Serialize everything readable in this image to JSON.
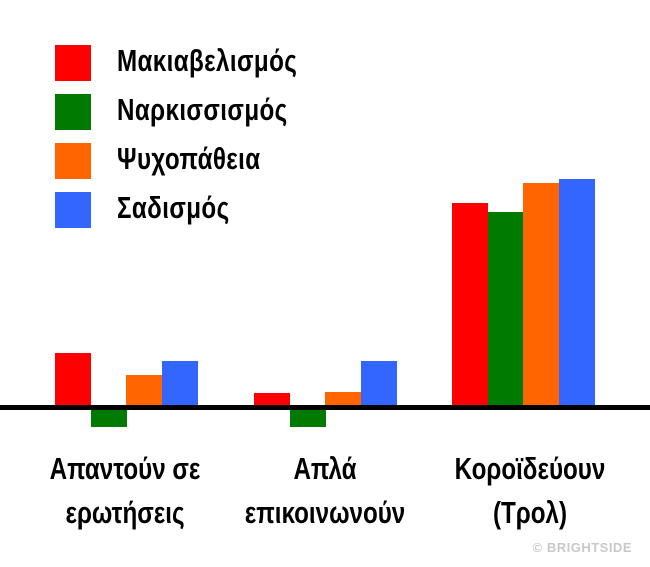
{
  "chart_data": {
    "type": "bar",
    "title": "",
    "xlabel": "",
    "ylabel": "",
    "grid": false,
    "legend_position": "top-left",
    "categories": [
      "Απαντούν σε ερωτήσεις",
      "Απλά επικοινωνούν",
      "Κοροϊδεύουν (Τρολ)"
    ],
    "category_lines": [
      [
        "Απαντούν σε",
        "ερωτήσεις"
      ],
      [
        "Απλά",
        "επικοινωνούν"
      ],
      [
        "Κοροϊδεύουν",
        "(Τρολ)"
      ]
    ],
    "units": "relative (no axis scale shown)",
    "series": [
      {
        "name": "Μακιαβελισμός",
        "color": "#ff0000",
        "values": [
          53,
          13,
          203
        ]
      },
      {
        "name": "Ναρκισσισμός",
        "color": "#017a01",
        "values": [
          -19,
          -19,
          194
        ]
      },
      {
        "name": "Ψυχοπάθεια",
        "color": "#ff6600",
        "values": [
          31,
          14,
          223
        ]
      },
      {
        "name": "Σαδισμός",
        "color": "#3366ff",
        "values": [
          45,
          45,
          227
        ]
      }
    ]
  },
  "legend": {
    "items": [
      {
        "label": "Μακιαβελισμός",
        "color": "#ff0000"
      },
      {
        "label": "Ναρκισσισμός",
        "color": "#017a01"
      },
      {
        "label": "Ψυχοπάθεια",
        "color": "#ff6600"
      },
      {
        "label": "Σαδισμός",
        "color": "#3366ff"
      }
    ]
  },
  "labels": {
    "cat0_line1": "Απαντούν σε",
    "cat0_line2": "ερωτήσεις",
    "cat1_line1": "Απλά",
    "cat1_line2": "επικοινωνούν",
    "cat2_line1": "Κοροϊδεύουν",
    "cat2_line2": "(Τρολ)"
  },
  "watermark": "© BRIGHTSIDE"
}
